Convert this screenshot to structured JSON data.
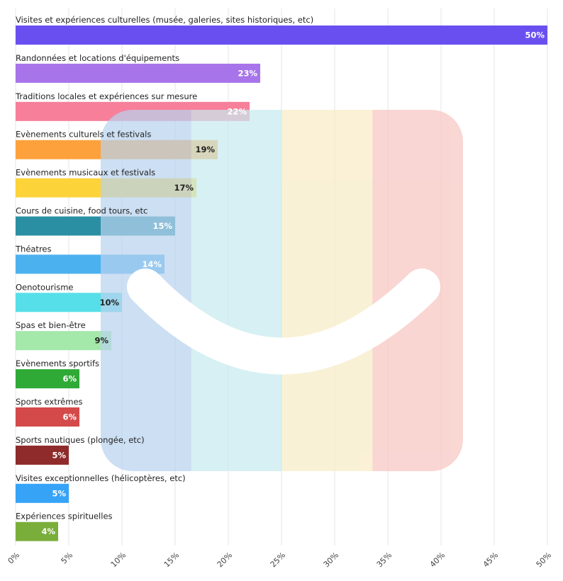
{
  "chart_data": {
    "type": "bar",
    "orientation": "horizontal",
    "title": "",
    "xlabel": "",
    "ylabel": "",
    "xlim": [
      0,
      50
    ],
    "grid": true,
    "legend": "none",
    "value_suffix": "%",
    "categories": [
      "Visites et expériences culturelles (musée, galeries, sites historiques, etc)",
      "Randonnées et locations d'équipements",
      "Traditions locales et expériences sur mesure",
      "Evènements culturels et festivals",
      "Evènements musicaux et festivals",
      "Cours de cuisine, food tours, etc",
      "Théatres",
      "Oenotourisme",
      "Spas et bien-être",
      "Evènements sportifs",
      "Sports extrêmes",
      "Sports nautiques (plongée, etc)",
      "Visites exceptionnelles (hélicoptères, etc)",
      "Expériences spirituelles"
    ],
    "values": [
      50,
      23,
      22,
      19,
      17,
      15,
      14,
      10,
      9,
      6,
      6,
      5,
      5,
      4
    ],
    "value_labels": [
      "50%",
      "23%",
      "22%",
      "19%",
      "17%",
      "15%",
      "14%",
      "10%",
      "9%",
      "6%",
      "6%",
      "5%",
      "5%",
      "4%"
    ],
    "colors": [
      "#6a4ff0",
      "#a774ea",
      "#f77f9a",
      "#fda13c",
      "#fdd33a",
      "#2a8fa3",
      "#4cb1ef",
      "#56dfe8",
      "#a4e8aa",
      "#2faa36",
      "#d44a4a",
      "#8f2b2b",
      "#36a3f7",
      "#7aae3a"
    ],
    "label_colors": [
      "#ffffff",
      "#ffffff",
      "#ffffff",
      "#222222",
      "#222222",
      "#ffffff",
      "#ffffff",
      "#222222",
      "#222222",
      "#ffffff",
      "#ffffff",
      "#ffffff",
      "#ffffff",
      "#ffffff"
    ],
    "x_ticks": [
      0,
      5,
      10,
      15,
      20,
      25,
      30,
      35,
      40,
      45,
      50
    ],
    "x_tick_labels": [
      "0%",
      "5%",
      "10%",
      "15%",
      "20%",
      "25%",
      "30%",
      "35%",
      "40%",
      "45%",
      "50%"
    ]
  },
  "watermark": {
    "type": "logo",
    "stripe_colors": [
      "#b9d3ee",
      "#c8ebef",
      "#f8ecc7",
      "#f7c7c2"
    ]
  }
}
